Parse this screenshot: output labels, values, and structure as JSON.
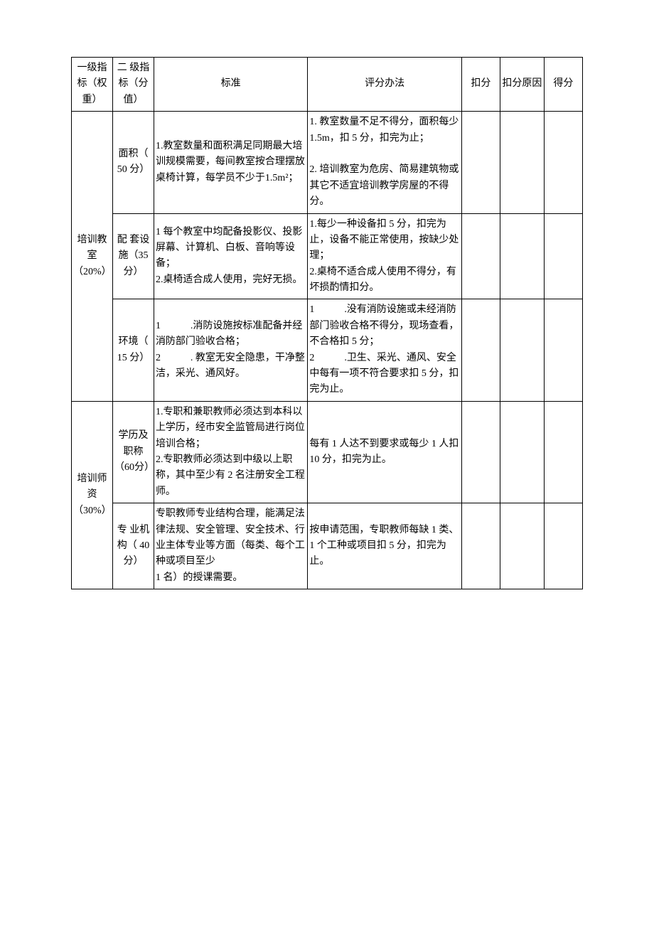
{
  "headers": {
    "level1": "一级指标（权重）",
    "level2": "二 级指 标（分值）",
    "standard": "标准",
    "method": "评分办法",
    "deduct": "扣分",
    "reason": "扣分原因",
    "score": "得分"
  },
  "rows": [
    {
      "level1": "培训教室（20%）",
      "level1_rowspan": 3,
      "level2": "面积（ 50 分）",
      "standard": "1.教室数量和面积满足同期最大培训规模需要，每间教室按合理摆放桌椅计算，每学员不少于1.5m²；",
      "method": "1. 教室数量不足不得分，面积每少 1.5m，扣 5 分，扣完为止；\n\n2. 培训教室为危房、简易建筑物或其它不适宜培训教学房屋的不得分。"
    },
    {
      "level2": "配 套设施（35 分）",
      "standard": "1 每个教室中均配备投影仪、投影屏幕、计算机、白板、音响等设备；\n2.桌椅适合成人使用，完好无损。",
      "method": "1.每少一种设备扣 5 分，扣完为止，设备不能正常使用，按缺少处理；\n2.桌椅不适合成人使用不得分，有坏损酌情扣分。"
    },
    {
      "level2": "环境（ 15 分）",
      "standard": "1　　　.消防设施按标准配备并经消防部门验收合格；\n2　　　. 教室无安全隐患，干净整洁，采光、通风好。",
      "method": "1　　　.没有消防设施或未经消防部门验收合格不得分，现场查看，不合格扣 5 分；\n2　　　.卫生、采光、通风、安全中每有一项不符合要求扣 5 分，扣完为止。"
    },
    {
      "level1": "培训师资（30%）",
      "level1_rowspan": 2,
      "level2": "学历及职称（60分）",
      "standard": "1.专职和兼职教师必须达到本科以上学历，经市安全监管局进行岗位培训合格；\n2.专职教师必须达到中级以上职称，其中至少有 2 名注册安全工程师。",
      "method": "每有 1 人达不到要求或每少 1 人扣 10 分，扣完为止。"
    },
    {
      "level2": "专 业机构（ 40 分）",
      "standard": "专职教师专业结构合理，能满足法律法规、安全管理、安全技术、行业主体专业等方面（每类、每个工种或项目至少\n1 名）的授课需要。",
      "method": "按申请范围，专职教师每缺 1 类、1 个工种或项目扣 5 分，扣完为止。"
    }
  ]
}
